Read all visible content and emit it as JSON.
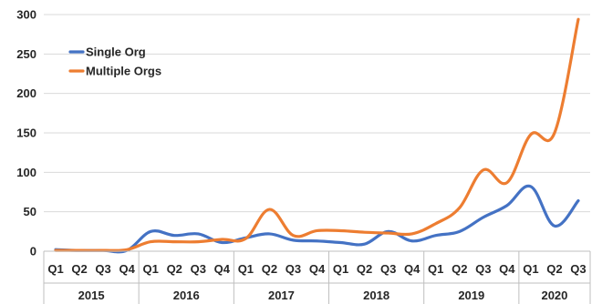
{
  "chart_data": {
    "type": "line",
    "title": "",
    "xlabel": "",
    "ylabel": "",
    "ylim": [
      0,
      300
    ],
    "yticks": [
      0,
      50,
      100,
      150,
      200,
      250,
      300
    ],
    "grid": true,
    "legend_position": "top-left",
    "categories": [
      "Q1",
      "Q2",
      "Q3",
      "Q4",
      "Q1",
      "Q2",
      "Q3",
      "Q4",
      "Q1",
      "Q2",
      "Q3",
      "Q4",
      "Q1",
      "Q2",
      "Q3",
      "Q4",
      "Q1",
      "Q2",
      "Q3",
      "Q4",
      "Q1",
      "Q2",
      "Q3"
    ],
    "groups": [
      {
        "label": "2015",
        "size": 4
      },
      {
        "label": "2016",
        "size": 4
      },
      {
        "label": "2017",
        "size": 4
      },
      {
        "label": "2018",
        "size": 4
      },
      {
        "label": "2019",
        "size": 4
      },
      {
        "label": "2020",
        "size": 3
      }
    ],
    "series": [
      {
        "name": "Single Org",
        "color": "#4472C4",
        "values": [
          2,
          1,
          1,
          1,
          25,
          20,
          22,
          11,
          17,
          22,
          14,
          13,
          11,
          9,
          25,
          13,
          20,
          25,
          43,
          58,
          82,
          32,
          64
        ]
      },
      {
        "name": "Multiple Orgs",
        "color": "#ED7D31",
        "values": [
          1,
          1,
          1,
          2,
          12,
          12,
          12,
          15,
          16,
          53,
          20,
          26,
          26,
          24,
          23,
          22,
          35,
          55,
          103,
          87,
          148,
          150,
          294
        ]
      }
    ]
  }
}
